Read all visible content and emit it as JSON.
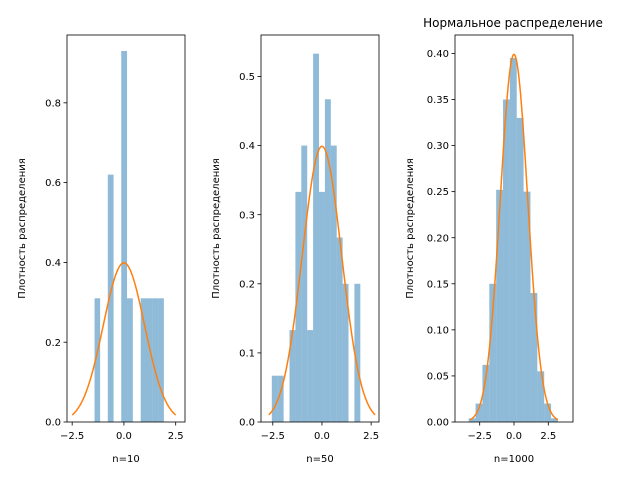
{
  "colors": {
    "bars": "#1f77b4",
    "curve": "#ff7f0e",
    "background": "#ffffff",
    "axes": "#000000"
  },
  "chart_data": [
    {
      "type": "histogram",
      "title": "",
      "xlabel": "n=10",
      "ylabel": "Плотность распределения",
      "xlim": [
        -2.75,
        2.95
      ],
      "ylim": [
        0,
        0.97
      ],
      "xticks": [
        -2.5,
        0.0,
        2.5
      ],
      "xtick_labels": [
        "−2.5",
        "0.0",
        "2.5"
      ],
      "yticks": [
        0.0,
        0.2,
        0.4,
        0.6,
        0.8
      ],
      "ytick_labels": [
        "0.0",
        "0.2",
        "0.4",
        "0.6",
        "0.8"
      ],
      "bins": [
        {
          "x0": -1.42,
          "x1": -1.15,
          "density": 0.31
        },
        {
          "x0": -0.78,
          "x1": -0.5,
          "density": 0.62
        },
        {
          "x0": -0.13,
          "x1": 0.15,
          "density": 0.93
        },
        {
          "x0": 0.15,
          "x1": 0.43,
          "density": 0.31
        },
        {
          "x0": 0.81,
          "x1": 1.09,
          "density": 0.31
        },
        {
          "x0": 1.09,
          "x1": 1.37,
          "density": 0.31
        },
        {
          "x0": 1.37,
          "x1": 1.65,
          "density": 0.31
        },
        {
          "x0": 1.65,
          "x1": 1.93,
          "density": 0.31
        }
      ],
      "curve": {
        "type": "normal_pdf",
        "mean": 0,
        "std": 1,
        "xrange": [
          -2.5,
          2.5
        ]
      }
    },
    {
      "type": "histogram",
      "title": "",
      "xlabel": "n=50",
      "ylabel": "Плотность распределения",
      "xlim": [
        -3.1,
        2.9
      ],
      "ylim": [
        0,
        0.56
      ],
      "xticks": [
        -2.5,
        0.0,
        2.5
      ],
      "xtick_labels": [
        "−2.5",
        "0.0",
        "2.5"
      ],
      "yticks": [
        0.0,
        0.1,
        0.2,
        0.3,
        0.4,
        0.5
      ],
      "ytick_labels": [
        "0.0",
        "0.1",
        "0.2",
        "0.3",
        "0.4",
        "0.5"
      ],
      "bins": [
        {
          "x0": -2.55,
          "x1": -2.25,
          "density": 0.067
        },
        {
          "x0": -2.25,
          "x1": -1.95,
          "density": 0.067
        },
        {
          "x0": -1.65,
          "x1": -1.35,
          "density": 0.133
        },
        {
          "x0": -1.35,
          "x1": -1.05,
          "density": 0.333
        },
        {
          "x0": -1.05,
          "x1": -0.75,
          "density": 0.4
        },
        {
          "x0": -0.75,
          "x1": -0.45,
          "density": 0.133
        },
        {
          "x0": -0.45,
          "x1": -0.15,
          "density": 0.533
        },
        {
          "x0": -0.15,
          "x1": 0.15,
          "density": 0.333
        },
        {
          "x0": 0.15,
          "x1": 0.45,
          "density": 0.467
        },
        {
          "x0": 0.45,
          "x1": 0.75,
          "density": 0.4
        },
        {
          "x0": 0.75,
          "x1": 1.05,
          "density": 0.267
        },
        {
          "x0": 1.05,
          "x1": 1.35,
          "density": 0.2
        },
        {
          "x0": 1.65,
          "x1": 1.95,
          "density": 0.2
        }
      ],
      "curve": {
        "type": "normal_pdf",
        "mean": 0,
        "std": 1,
        "xrange": [
          -2.7,
          2.7
        ]
      }
    },
    {
      "type": "histogram",
      "title": "Нормальное распределение",
      "xlabel": "n=1000",
      "ylabel": "Плотность распределения",
      "xlim": [
        -4.3,
        4.3
      ],
      "ylim": [
        0,
        0.42
      ],
      "xticks": [
        -2.5,
        0.0,
        2.5
      ],
      "xtick_labels": [
        "−2.5",
        "0.0",
        "2.5"
      ],
      "yticks": [
        0.0,
        0.05,
        0.1,
        0.15,
        0.2,
        0.25,
        0.3,
        0.35,
        0.4
      ],
      "ytick_labels": [
        "0.00",
        "0.05",
        "0.10",
        "0.15",
        "0.20",
        "0.25",
        "0.30",
        "0.35",
        "0.40"
      ],
      "bins": [
        {
          "x0": -3.3,
          "x1": -2.8,
          "density": 0.004
        },
        {
          "x0": -2.8,
          "x1": -2.3,
          "density": 0.02
        },
        {
          "x0": -2.3,
          "x1": -1.8,
          "density": 0.062
        },
        {
          "x0": -1.8,
          "x1": -1.3,
          "density": 0.15
        },
        {
          "x0": -1.3,
          "x1": -0.8,
          "density": 0.252
        },
        {
          "x0": -0.8,
          "x1": -0.3,
          "density": 0.35
        },
        {
          "x0": -0.3,
          "x1": 0.2,
          "density": 0.395
        },
        {
          "x0": 0.2,
          "x1": 0.7,
          "density": 0.33
        },
        {
          "x0": 0.7,
          "x1": 1.2,
          "density": 0.25
        },
        {
          "x0": 1.2,
          "x1": 1.7,
          "density": 0.14
        },
        {
          "x0": 1.7,
          "x1": 2.2,
          "density": 0.055
        },
        {
          "x0": 2.2,
          "x1": 2.7,
          "density": 0.02
        },
        {
          "x0": 2.7,
          "x1": 3.2,
          "density": 0.004
        }
      ],
      "curve": {
        "type": "normal_pdf",
        "mean": 0,
        "std": 1,
        "xrange": [
          -3.2,
          3.2
        ]
      }
    }
  ]
}
